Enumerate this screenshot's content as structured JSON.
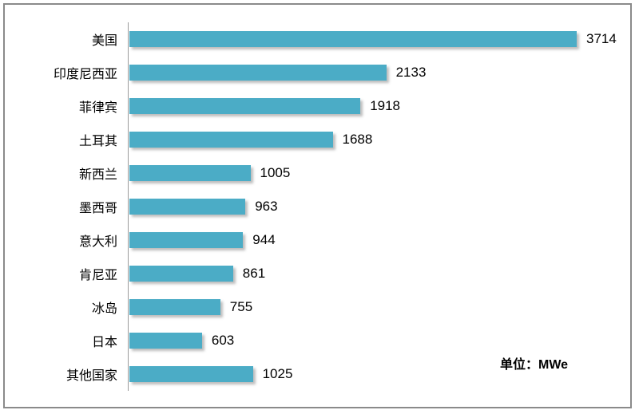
{
  "chart_data": {
    "type": "bar",
    "orientation": "horizontal",
    "title": "",
    "xlabel": "",
    "ylabel": "",
    "categories": [
      "美国",
      "印度尼西亚",
      "菲律宾",
      "土耳其",
      "新西兰",
      "墨西哥",
      "意大利",
      "肯尼亚",
      "冰岛",
      "日本",
      "其他国家"
    ],
    "values": [
      3714,
      2133,
      1918,
      1688,
      1005,
      963,
      944,
      861,
      755,
      603,
      1025
    ],
    "value_labels_shown": true,
    "unit_label": "单位：MWe",
    "bar_color": "#4BACC6",
    "grid": false,
    "legend": false,
    "xlim": [
      0,
      3900
    ]
  }
}
